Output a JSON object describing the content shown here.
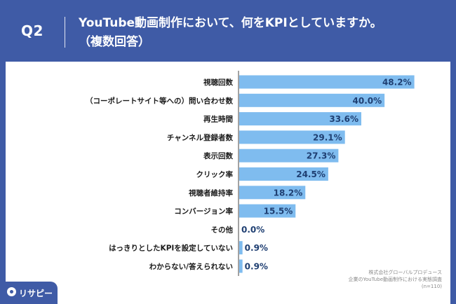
{
  "header": {
    "question_label": "Q2",
    "title_line1": "YouTube動画制作において、何をKPIとしていますか。",
    "title_line2": "（複数回答）"
  },
  "source": {
    "line1": "株式会社グローバルプロデュース",
    "line2": "企業のYouTube動画制作における実態調査",
    "line3": "(n=110)"
  },
  "brand": {
    "name": "リサピー",
    "icon": "pin-icon"
  },
  "colors": {
    "bar": "#7fbcef",
    "value_text": "#1f3f72",
    "header_bg": "#3f5ba6"
  },
  "chart_data": {
    "type": "bar",
    "orientation": "horizontal",
    "categories": [
      "視聴回数",
      "（コーポレートサイト等への）問い合わせ数",
      "再生時間",
      "チャンネル登録者数",
      "表示回数",
      "クリック率",
      "視聴者維持率",
      "コンバージョン率",
      "その他",
      "はっきりとしたKPIを設定していない",
      "わからない/答えられない"
    ],
    "values": [
      48.2,
      40.0,
      33.6,
      29.1,
      27.3,
      24.5,
      18.2,
      15.5,
      0.0,
      0.9,
      0.9
    ],
    "value_labels": [
      "48.2%",
      "40.0%",
      "33.6%",
      "29.1%",
      "27.3%",
      "24.5%",
      "18.2%",
      "15.5%",
      "0.0%",
      "0.9%",
      "0.9%"
    ],
    "xlim": [
      0,
      56
    ],
    "title": "",
    "xlabel": "",
    "ylabel": "",
    "grid": false,
    "legend": "none"
  }
}
